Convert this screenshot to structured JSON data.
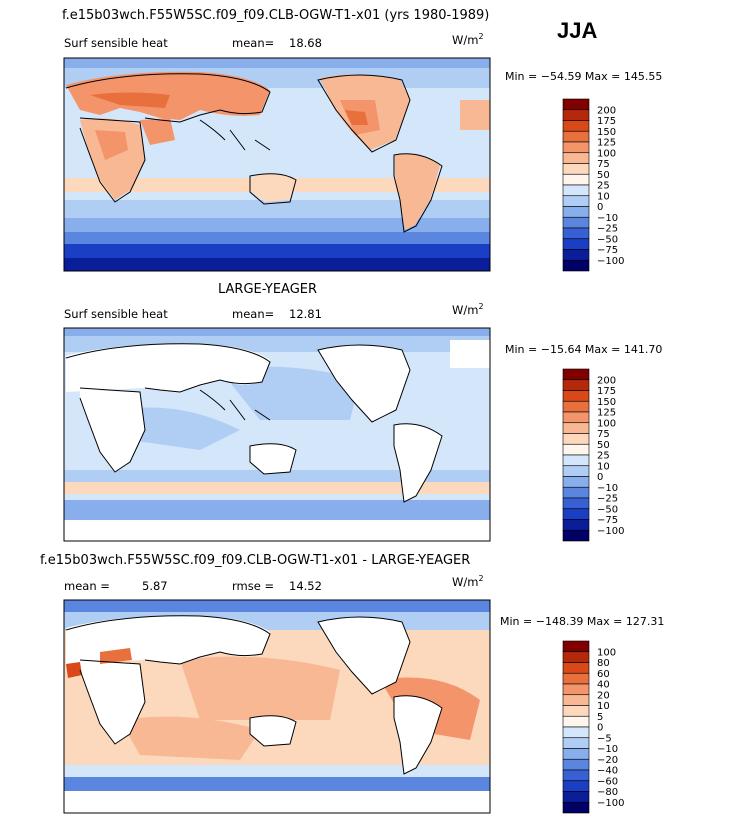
{
  "season": "JJA",
  "units": {
    "base": "W/m",
    "sup": "2"
  },
  "panels": [
    {
      "title": "f.e15b03wch.F55W5SC.f09_f09.CLB-OGW-T1-x01 (yrs 1980-1989)",
      "field": "Surf sensible heat",
      "stat1_label": "mean=",
      "stat1_value": "18.68",
      "minmax": "Min = −54.59 Max = 145.55",
      "levels": [
        "200",
        "175",
        "150",
        "125",
        "100",
        "75",
        "50",
        "25",
        "10",
        "0",
        "−10",
        "−25",
        "−50",
        "−75",
        "−100"
      ],
      "colors": [
        "#800000",
        "#b4280c",
        "#d84818",
        "#e8703c",
        "#f4946a",
        "#f8b894",
        "#fcd8bc",
        "#fff5ee",
        "#d4e6fa",
        "#b0cdf4",
        "#88aeec",
        "#5a86e0",
        "#3860d4",
        "#1a3ec4",
        "#0a1e9a",
        "#000066"
      ]
    },
    {
      "title": "LARGE-YEAGER",
      "field": "Surf sensible heat",
      "stat1_label": "mean=",
      "stat1_value": "12.81",
      "minmax": "Min = −15.64 Max = 141.70",
      "levels": [
        "200",
        "175",
        "150",
        "125",
        "100",
        "75",
        "50",
        "25",
        "10",
        "0",
        "−10",
        "−25",
        "−50",
        "−75",
        "−100"
      ],
      "colors": [
        "#800000",
        "#b4280c",
        "#d84818",
        "#e8703c",
        "#f4946a",
        "#f8b894",
        "#fcd8bc",
        "#fff5ee",
        "#d4e6fa",
        "#b0cdf4",
        "#88aeec",
        "#5a86e0",
        "#3860d4",
        "#1a3ec4",
        "#0a1e9a",
        "#000066"
      ]
    },
    {
      "title": "f.e15b03wch.F55W5SC.f09_f09.CLB-OGW-T1-x01 - LARGE-YEAGER",
      "field": "",
      "stat1_label": "mean =",
      "stat1_value": "5.87",
      "stat2_label": "rmse =",
      "stat2_value": "14.52",
      "minmax": "Min = −148.39 Max = 127.31",
      "levels": [
        "100",
        "80",
        "60",
        "40",
        "20",
        "10",
        "5",
        "0",
        "−5",
        "−10",
        "−20",
        "−40",
        "−60",
        "−80",
        "−100"
      ],
      "colors": [
        "#800000",
        "#b4280c",
        "#d84818",
        "#e8703c",
        "#f4946a",
        "#f8b894",
        "#fcd8bc",
        "#fff5ee",
        "#d4e6fa",
        "#b0cdf4",
        "#88aeec",
        "#5a86e0",
        "#3860d4",
        "#1a3ec4",
        "#0a1e9a",
        "#000066"
      ]
    }
  ],
  "chart_data": {
    "type": "heatmap",
    "title": "JJA",
    "maps": [
      {
        "name": "f.e15b03wch.F55W5SC.f09_f09.CLB-OGW-T1-x01 (yrs 1980-1989)",
        "variable": "Surf sensible heat",
        "units": "W/m2",
        "mean": 18.68,
        "min": -54.59,
        "max": 145.55
      },
      {
        "name": "LARGE-YEAGER",
        "variable": "Surf sensible heat",
        "units": "W/m2",
        "mean": 12.81,
        "min": -15.64,
        "max": 141.7
      },
      {
        "name": "f.e15b03wch.F55W5SC.f09_f09.CLB-OGW-T1-x01 - LARGE-YEAGER",
        "units": "W/m2",
        "mean": 5.87,
        "rmse": 14.52,
        "min": -148.39,
        "max": 127.31
      }
    ],
    "contour_levels_1_2": [
      -100,
      -75,
      -50,
      -25,
      -10,
      0,
      10,
      25,
      50,
      75,
      100,
      125,
      150,
      175,
      200
    ],
    "contour_levels_diff": [
      -100,
      -80,
      -60,
      -40,
      -20,
      -10,
      -5,
      0,
      5,
      10,
      20,
      40,
      60,
      80,
      100
    ]
  }
}
